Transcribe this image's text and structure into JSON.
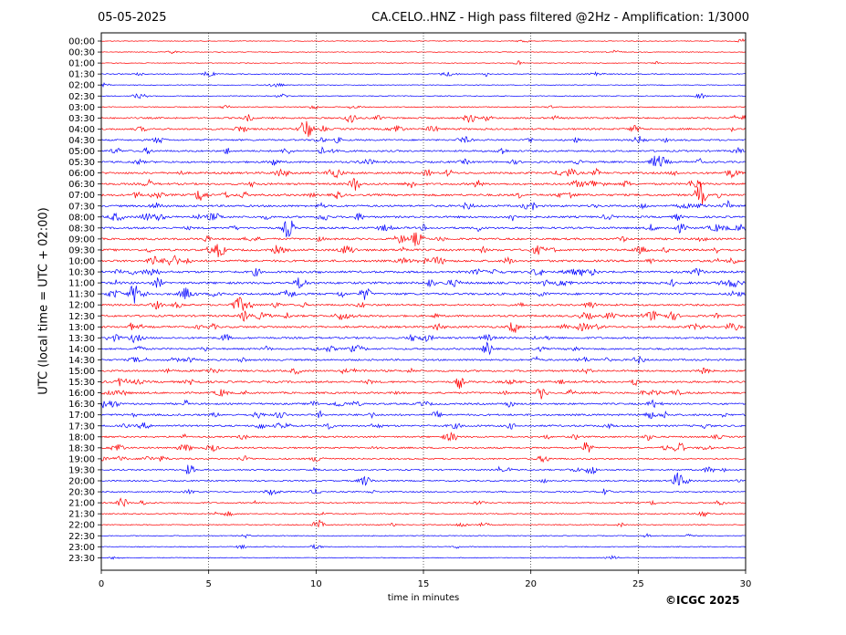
{
  "header": {
    "date": "05-05-2025",
    "title": "CA.CELO..HNZ - High pass filtered @2Hz - Amplification: 1/3000"
  },
  "footer": {
    "copyright": "©ICGC 2025"
  },
  "chart_data": {
    "type": "line",
    "subtype": "helicorder",
    "xlabel": "time in minutes",
    "ylabel": "UTC (local time = UTC + 02:00)",
    "xlim": [
      0,
      30
    ],
    "x_ticks": [
      0,
      5,
      10,
      15,
      20,
      25,
      30
    ],
    "vertical_grid_at": [
      5,
      10,
      15,
      20,
      25
    ],
    "rows": [
      "00:00",
      "00:30",
      "01:00",
      "01:30",
      "02:00",
      "02:30",
      "03:00",
      "03:30",
      "04:00",
      "04:30",
      "05:00",
      "05:30",
      "06:00",
      "06:30",
      "07:00",
      "07:30",
      "08:00",
      "08:30",
      "09:00",
      "09:30",
      "10:00",
      "10:30",
      "11:00",
      "11:30",
      "12:00",
      "12:30",
      "13:00",
      "13:30",
      "14:00",
      "14:30",
      "15:00",
      "15:30",
      "16:00",
      "16:30",
      "17:00",
      "17:30",
      "18:00",
      "18:30",
      "19:00",
      "19:30",
      "20:00",
      "20:30",
      "21:00",
      "21:30",
      "22:00",
      "22:30",
      "23:00",
      "23:30"
    ],
    "trace_colors": [
      "#ff0000",
      "#0000ff"
    ],
    "color_pattern": "alternating groups of 3 rows: red, blue",
    "noise_level": [
      0.1,
      0.1,
      0.1,
      0.2,
      0.1,
      0.15,
      0.2,
      0.45,
      0.5,
      0.45,
      0.5,
      0.55,
      0.6,
      0.6,
      0.65,
      0.6,
      0.6,
      0.6,
      0.6,
      0.65,
      0.65,
      0.65,
      0.7,
      0.65,
      0.55,
      0.6,
      0.6,
      0.55,
      0.5,
      0.5,
      0.55,
      0.6,
      0.55,
      0.5,
      0.55,
      0.55,
      0.45,
      0.45,
      0.4,
      0.35,
      0.35,
      0.3,
      0.3,
      0.25,
      0.2,
      0.15,
      0.15,
      0.1
    ],
    "events": [
      {
        "row": "01:30",
        "minute": 5.0,
        "amplitude": 1.0
      },
      {
        "row": "02:30",
        "minute": 27.9,
        "amplitude": 0.9
      },
      {
        "row": "03:00",
        "minute": 5.8,
        "amplitude": 0.6
      },
      {
        "row": "03:30",
        "minute": 11.6,
        "amplitude": 2.0
      },
      {
        "row": "04:00",
        "minute": 9.6,
        "amplitude": 3.0
      },
      {
        "row": "06:30",
        "minute": 11.8,
        "amplitude": 2.0
      },
      {
        "row": "07:00",
        "minute": 27.9,
        "amplitude": 3.5
      },
      {
        "row": "08:30",
        "minute": 8.7,
        "amplitude": 2.5
      },
      {
        "row": "09:30",
        "minute": 5.5,
        "amplitude": 2.2
      },
      {
        "row": "11:30",
        "minute": 1.5,
        "amplitude": 1.8
      },
      {
        "row": "11:30",
        "minute": 12.3,
        "amplitude": 1.8
      },
      {
        "row": "12:30",
        "minute": 6.7,
        "amplitude": 1.5
      },
      {
        "row": "13:00",
        "minute": 19.2,
        "amplitude": 1.8
      },
      {
        "row": "14:00",
        "minute": 18.0,
        "amplitude": 1.8
      },
      {
        "row": "16:00",
        "minute": 20.5,
        "amplitude": 1.6
      },
      {
        "row": "18:30",
        "minute": 22.6,
        "amplitude": 1.8
      },
      {
        "row": "18:30",
        "minute": 26.9,
        "amplitude": 1.8
      },
      {
        "row": "19:30",
        "minute": 4.1,
        "amplitude": 1.5
      },
      {
        "row": "19:30",
        "minute": 22.8,
        "amplitude": 1.5
      },
      {
        "row": "20:00",
        "minute": 26.8,
        "amplitude": 2.0
      },
      {
        "row": "21:00",
        "minute": 1.0,
        "amplitude": 1.5
      },
      {
        "row": "22:00",
        "minute": 10.1,
        "amplitude": 1.5
      }
    ]
  }
}
